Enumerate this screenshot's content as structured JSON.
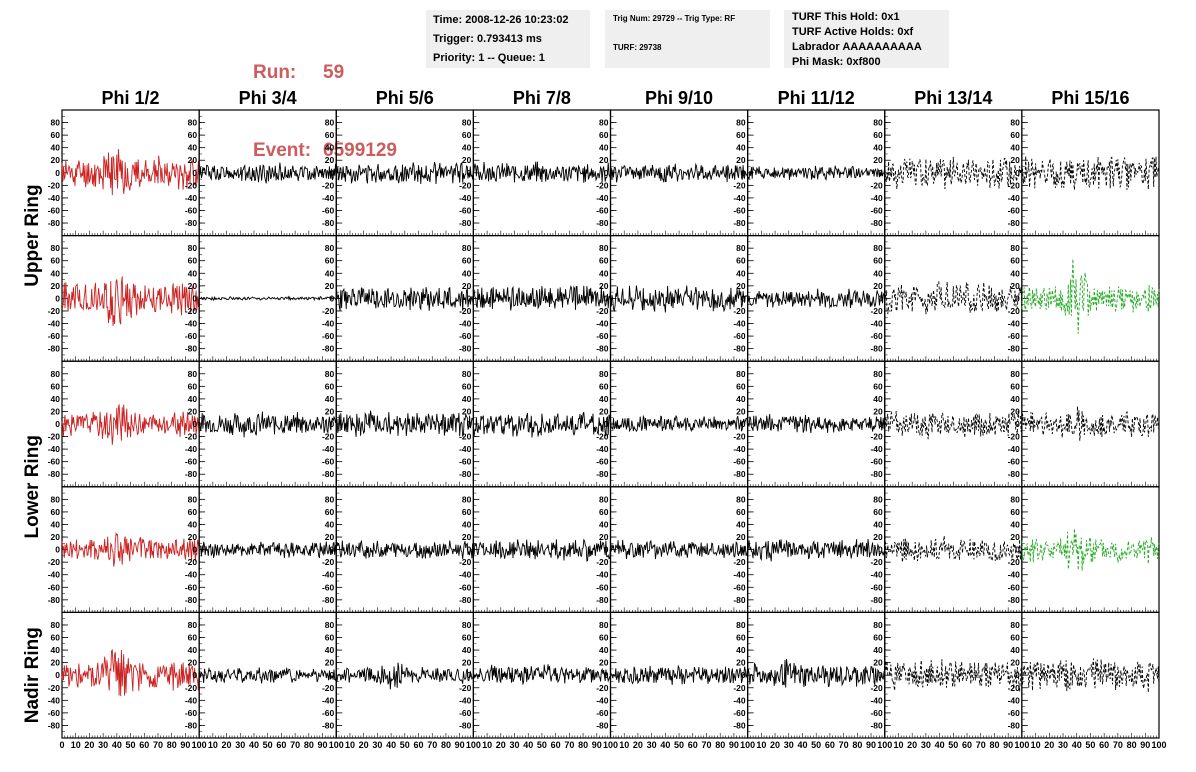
{
  "header": {
    "run_label": "Run:",
    "run_value": "59",
    "event_label": "Event:",
    "event_value": "6599129",
    "time_box": [
      "Time: 2008-12-26 10:23:02",
      "Trigger: 0.793413 ms",
      "Priority: 1 -- Queue: 1"
    ],
    "trig_box": [
      "Trig Num: 29729 -- Trig Type: RF",
      "TURF: 29738"
    ],
    "turf_box": [
      "TURF This Hold: 0x1",
      "TURF Active Holds: 0xf",
      "Labrador AAAAAAAAAA",
      "Phi Mask: 0xf800"
    ]
  },
  "colors": {
    "header_red": "#cd5c5c",
    "info_bg": "#efefef",
    "trace_red": "#cc2222",
    "trace_black": "#000000",
    "trace_green": "#22aa22"
  },
  "chart_data": {
    "type": "line",
    "title": "",
    "column_headers": [
      "Phi 1/2",
      "Phi 3/4",
      "Phi 5/6",
      "Phi 7/8",
      "Phi 9/10",
      "Phi 11/12",
      "Phi 13/14",
      "Phi 15/16"
    ],
    "ring_labels": [
      "Upper Ring",
      "Lower Ring",
      "Nadir Ring"
    ],
    "xlim": [
      0,
      100
    ],
    "ylim": [
      -100,
      100
    ],
    "y_ticks": [
      80,
      60,
      40,
      20,
      0,
      -20,
      -40,
      -60,
      -80
    ],
    "x_ticks": [
      0,
      10,
      20,
      30,
      40,
      50,
      60,
      70,
      80,
      90,
      100
    ],
    "row_count": 5,
    "column_style": [
      "solid",
      "solid",
      "solid",
      "solid",
      "solid",
      "solid",
      "dashed",
      "dashed"
    ],
    "panels": [
      [
        {
          "color": "red",
          "amp": 28,
          "burst_x": 40,
          "burst_amp": 55,
          "seed": 11
        },
        {
          "color": "black",
          "amp": 16,
          "burst_x": 50,
          "burst_amp": 20,
          "seed": 12
        },
        {
          "color": "black",
          "amp": 18,
          "burst_x": 50,
          "burst_amp": 20,
          "seed": 13
        },
        {
          "color": "black",
          "amp": 18,
          "burst_x": 50,
          "burst_amp": 20,
          "seed": 14
        },
        {
          "color": "black",
          "amp": 16,
          "burst_x": 50,
          "burst_amp": 18,
          "seed": 15
        },
        {
          "color": "black",
          "amp": 12,
          "burst_x": 50,
          "burst_amp": 14,
          "seed": 16
        },
        {
          "color": "black",
          "amp": 28,
          "burst_x": 30,
          "burst_amp": 30,
          "seed": 17
        },
        {
          "color": "black",
          "amp": 30,
          "burst_x": 70,
          "burst_amp": 35,
          "seed": 18
        }
      ],
      [
        {
          "color": "red",
          "amp": 30,
          "burst_x": 40,
          "burst_amp": 55,
          "seed": 21
        },
        {
          "color": "black",
          "amp": 3,
          "burst_x": 50,
          "burst_amp": 3,
          "seed": 22
        },
        {
          "color": "black",
          "amp": 22,
          "burst_x": 40,
          "burst_amp": 24,
          "seed": 23
        },
        {
          "color": "black",
          "amp": 22,
          "burst_x": 30,
          "burst_amp": 24,
          "seed": 24
        },
        {
          "color": "black",
          "amp": 22,
          "burst_x": 40,
          "burst_amp": 24,
          "seed": 25
        },
        {
          "color": "black",
          "amp": 16,
          "burst_x": 30,
          "burst_amp": 18,
          "seed": 26
        },
        {
          "color": "black",
          "amp": 28,
          "burst_x": 60,
          "burst_amp": 30,
          "seed": 27
        },
        {
          "color": "green",
          "amp": 24,
          "burst_x": 40,
          "burst_amp": 80,
          "seed": 28
        }
      ],
      [
        {
          "color": "red",
          "amp": 22,
          "burst_x": 40,
          "burst_amp": 45,
          "seed": 31
        },
        {
          "color": "black",
          "amp": 20,
          "burst_x": 40,
          "burst_amp": 24,
          "seed": 32
        },
        {
          "color": "black",
          "amp": 22,
          "burst_x": 50,
          "burst_amp": 24,
          "seed": 33
        },
        {
          "color": "black",
          "amp": 22,
          "burst_x": 50,
          "burst_amp": 24,
          "seed": 34
        },
        {
          "color": "black",
          "amp": 14,
          "burst_x": 50,
          "burst_amp": 16,
          "seed": 35
        },
        {
          "color": "black",
          "amp": 16,
          "burst_x": 40,
          "burst_amp": 18,
          "seed": 36
        },
        {
          "color": "black",
          "amp": 24,
          "burst_x": 30,
          "burst_amp": 30,
          "seed": 37
        },
        {
          "color": "black",
          "amp": 22,
          "burst_x": 40,
          "burst_amp": 30,
          "seed": 38
        }
      ],
      [
        {
          "color": "red",
          "amp": 22,
          "burst_x": 40,
          "burst_amp": 40,
          "seed": 41
        },
        {
          "color": "black",
          "amp": 14,
          "burst_x": 50,
          "burst_amp": 16,
          "seed": 42
        },
        {
          "color": "black",
          "amp": 16,
          "burst_x": 50,
          "burst_amp": 18,
          "seed": 43
        },
        {
          "color": "black",
          "amp": 18,
          "burst_x": 90,
          "burst_amp": 22,
          "seed": 44
        },
        {
          "color": "black",
          "amp": 16,
          "burst_x": 50,
          "burst_amp": 18,
          "seed": 45
        },
        {
          "color": "black",
          "amp": 18,
          "burst_x": 20,
          "burst_amp": 20,
          "seed": 46
        },
        {
          "color": "black",
          "amp": 22,
          "burst_x": 50,
          "burst_amp": 24,
          "seed": 47
        },
        {
          "color": "green",
          "amp": 24,
          "burst_x": 40,
          "burst_amp": 50,
          "seed": 48
        }
      ],
      [
        {
          "color": "red",
          "amp": 26,
          "burst_x": 40,
          "burst_amp": 65,
          "seed": 51
        },
        {
          "color": "black",
          "amp": 14,
          "burst_x": 50,
          "burst_amp": 16,
          "seed": 52
        },
        {
          "color": "black",
          "amp": 14,
          "burst_x": 40,
          "burst_amp": 30,
          "seed": 53
        },
        {
          "color": "black",
          "amp": 18,
          "burst_x": 50,
          "burst_amp": 20,
          "seed": 54
        },
        {
          "color": "black",
          "amp": 16,
          "burst_x": 50,
          "burst_amp": 18,
          "seed": 55
        },
        {
          "color": "black",
          "amp": 20,
          "burst_x": 30,
          "burst_amp": 28,
          "seed": 56
        },
        {
          "color": "black",
          "amp": 26,
          "burst_x": 50,
          "burst_amp": 28,
          "seed": 57
        },
        {
          "color": "black",
          "amp": 28,
          "burst_x": 60,
          "burst_amp": 32,
          "seed": 58
        }
      ]
    ]
  }
}
